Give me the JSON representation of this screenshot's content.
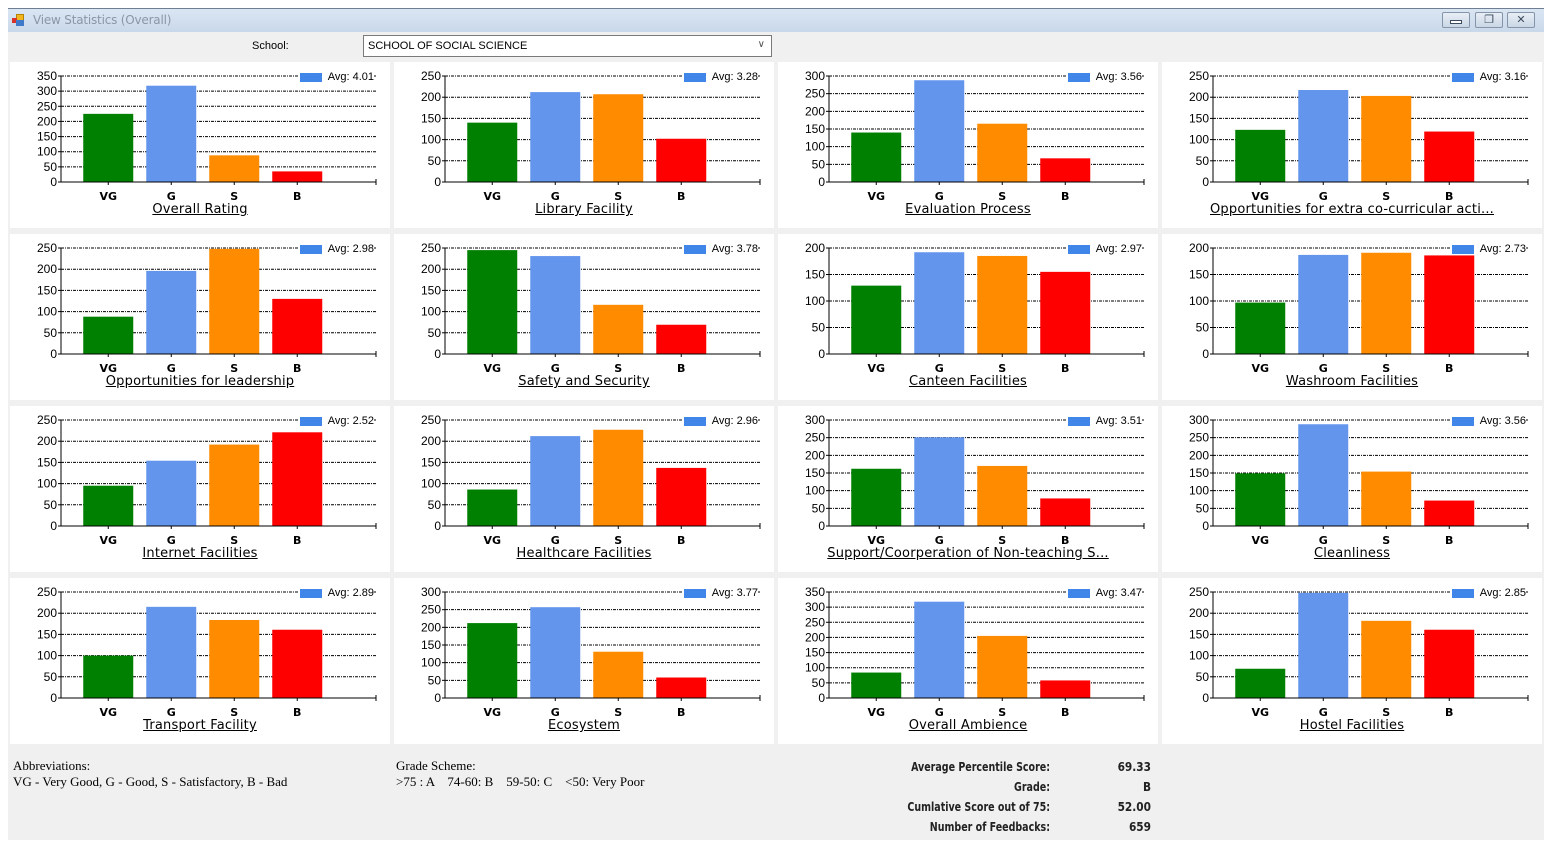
{
  "window": {
    "title": "View Statistics (Overall)",
    "controls": {
      "minimize": "minimize",
      "restore": "restore",
      "close": "close"
    }
  },
  "filter": {
    "school_label": "School:",
    "school_value": "SCHOOL OF SOCIAL SCIENCE"
  },
  "colors": {
    "VG": "#008000",
    "G": "#6495ED",
    "S": "#FF8C00",
    "B": "#FF0000",
    "legend": "#3f86e8"
  },
  "chart_data": [
    {
      "type": "bar",
      "title": "Overall Rating",
      "categories": [
        "VG",
        "G",
        "S",
        "B"
      ],
      "values": [
        225,
        318,
        88,
        35
      ],
      "ylim": [
        0,
        350
      ],
      "yticks": [
        0,
        50,
        100,
        150,
        200,
        250,
        300,
        350
      ],
      "legend": "Avg: 4.01",
      "legend_position": "top-right",
      "grid": true
    },
    {
      "type": "bar",
      "title": "Library Facility",
      "categories": [
        "VG",
        "G",
        "S",
        "B"
      ],
      "values": [
        140,
        212,
        207,
        102
      ],
      "ylim": [
        0,
        250
      ],
      "yticks": [
        0,
        50,
        100,
        150,
        200,
        250
      ],
      "legend": "Avg: 3.28",
      "legend_position": "top-right",
      "grid": true
    },
    {
      "type": "bar",
      "title": "Evaluation Process",
      "categories": [
        "VG",
        "G",
        "S",
        "B"
      ],
      "values": [
        140,
        288,
        165,
        67
      ],
      "ylim": [
        0,
        300
      ],
      "yticks": [
        0,
        50,
        100,
        150,
        200,
        250,
        300
      ],
      "legend": "Avg: 3.56",
      "legend_position": "top-right",
      "grid": true
    },
    {
      "type": "bar",
      "title": "Opportunities for extra co-curricular acti...",
      "categories": [
        "VG",
        "G",
        "S",
        "B"
      ],
      "values": [
        123,
        217,
        203,
        119
      ],
      "ylim": [
        0,
        250
      ],
      "yticks": [
        0,
        50,
        100,
        150,
        200,
        250
      ],
      "legend": "Avg: 3.16",
      "legend_position": "top-right",
      "grid": true
    },
    {
      "type": "bar",
      "title": "Opportunities for leadership",
      "categories": [
        "VG",
        "G",
        "S",
        "B"
      ],
      "values": [
        88,
        196,
        248,
        130
      ],
      "ylim": [
        0,
        250
      ],
      "yticks": [
        0,
        50,
        100,
        150,
        200,
        250
      ],
      "legend": "Avg: 2.98",
      "legend_position": "top-right",
      "grid": true
    },
    {
      "type": "bar",
      "title": "Safety and Security",
      "categories": [
        "VG",
        "G",
        "S",
        "B"
      ],
      "values": [
        245,
        231,
        116,
        69
      ],
      "ylim": [
        0,
        250
      ],
      "yticks": [
        0,
        50,
        100,
        150,
        200,
        250
      ],
      "legend": "Avg: 3.78",
      "legend_position": "top-right",
      "grid": true
    },
    {
      "type": "bar",
      "title": "Canteen Facilities",
      "categories": [
        "VG",
        "G",
        "S",
        "B"
      ],
      "values": [
        129,
        192,
        185,
        155
      ],
      "ylim": [
        0,
        200
      ],
      "yticks": [
        0,
        50,
        100,
        150,
        200
      ],
      "legend": "Avg: 2.97",
      "legend_position": "top-right",
      "grid": true
    },
    {
      "type": "bar",
      "title": "Washroom Facilities",
      "categories": [
        "VG",
        "G",
        "S",
        "B"
      ],
      "values": [
        97,
        187,
        191,
        186
      ],
      "ylim": [
        0,
        200
      ],
      "yticks": [
        0,
        50,
        100,
        150,
        200
      ],
      "legend": "Avg: 2.73",
      "legend_position": "top-right",
      "grid": true
    },
    {
      "type": "bar",
      "title": "Internet Facilities",
      "categories": [
        "VG",
        "G",
        "S",
        "B"
      ],
      "values": [
        95,
        154,
        192,
        221
      ],
      "ylim": [
        0,
        250
      ],
      "yticks": [
        0,
        50,
        100,
        150,
        200,
        250
      ],
      "legend": "Avg: 2.52",
      "legend_position": "top-right",
      "grid": true
    },
    {
      "type": "bar",
      "title": "Healthcare Facilities",
      "categories": [
        "VG",
        "G",
        "S",
        "B"
      ],
      "values": [
        86,
        212,
        227,
        137
      ],
      "ylim": [
        0,
        250
      ],
      "yticks": [
        0,
        50,
        100,
        150,
        200,
        250
      ],
      "legend": "Avg: 2.96",
      "legend_position": "top-right",
      "grid": true
    },
    {
      "type": "bar",
      "title": "Support/Coorperation of Non-teaching S...",
      "categories": [
        "VG",
        "G",
        "S",
        "B"
      ],
      "values": [
        162,
        251,
        170,
        78
      ],
      "ylim": [
        0,
        300
      ],
      "yticks": [
        0,
        50,
        100,
        150,
        200,
        250,
        300
      ],
      "legend": "Avg: 3.51",
      "legend_position": "top-right",
      "grid": true
    },
    {
      "type": "bar",
      "title": "Cleanliness",
      "categories": [
        "VG",
        "G",
        "S",
        "B"
      ],
      "values": [
        149,
        288,
        154,
        72
      ],
      "ylim": [
        0,
        300
      ],
      "yticks": [
        0,
        50,
        100,
        150,
        200,
        250,
        300
      ],
      "legend": "Avg: 3.56",
      "legend_position": "top-right",
      "grid": true
    },
    {
      "type": "bar",
      "title": "Transport Facility",
      "categories": [
        "VG",
        "G",
        "S",
        "B"
      ],
      "values": [
        100,
        215,
        184,
        161
      ],
      "ylim": [
        0,
        250
      ],
      "yticks": [
        0,
        50,
        100,
        150,
        200,
        250
      ],
      "legend": "Avg: 2.89",
      "legend_position": "top-right",
      "grid": true
    },
    {
      "type": "bar",
      "title": "Ecosystem",
      "categories": [
        "VG",
        "G",
        "S",
        "B"
      ],
      "values": [
        212,
        257,
        131,
        58
      ],
      "ylim": [
        0,
        300
      ],
      "yticks": [
        0,
        50,
        100,
        150,
        200,
        250,
        300
      ],
      "legend": "Avg: 3.77",
      "legend_position": "top-right",
      "grid": true
    },
    {
      "type": "bar",
      "title": "Overall Ambience",
      "categories": [
        "VG",
        "G",
        "S",
        "B"
      ],
      "values": [
        84,
        318,
        205,
        58
      ],
      "ylim": [
        0,
        350
      ],
      "yticks": [
        0,
        50,
        100,
        150,
        200,
        250,
        300,
        350
      ],
      "legend": "Avg: 3.47",
      "legend_position": "top-right",
      "grid": true
    },
    {
      "type": "bar",
      "title": "Hostel Facilities",
      "categories": [
        "VG",
        "G",
        "S",
        "B"
      ],
      "values": [
        69,
        248,
        182,
        161
      ],
      "ylim": [
        0,
        250
      ],
      "yticks": [
        0,
        50,
        100,
        150,
        200,
        250
      ],
      "legend": "Avg: 2.85",
      "legend_position": "top-right",
      "grid": true
    }
  ],
  "footer": {
    "abbreviations_title": "Abbreviations:",
    "abbreviations_text": "VG - Very Good, G - Good, S - Satisfactory, B - Bad",
    "grade_scheme_title": "Grade Scheme:",
    "grade_scheme_text": ">75 : A    74-60: B    59-50: C    <50: Very Poor",
    "stats": [
      {
        "label": "Average Percentile Score:",
        "value": "69.33"
      },
      {
        "label": "Grade:",
        "value": "B"
      },
      {
        "label": "Cumlative Score out of 75:",
        "value": "52.00"
      },
      {
        "label": "Number of Feedbacks:",
        "value": "659"
      }
    ]
  }
}
